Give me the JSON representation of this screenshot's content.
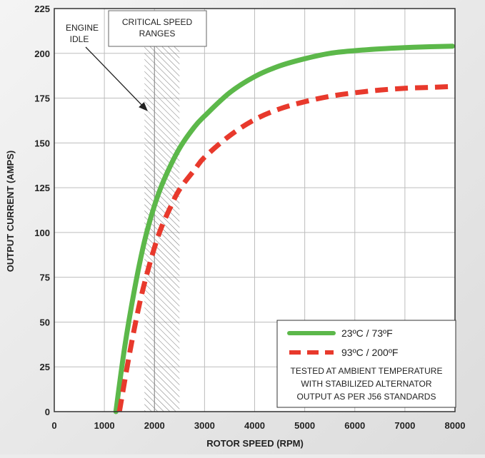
{
  "chart_data": {
    "type": "line",
    "xlabel": "ROTOR SPEED (RPM)",
    "ylabel": "OUTPUT CURRENT (AMPS)",
    "xlim": [
      0,
      8000
    ],
    "ylim": [
      0,
      225
    ],
    "x_ticks": [
      0,
      1000,
      2000,
      3000,
      4000,
      5000,
      6000,
      7000,
      8000
    ],
    "y_ticks": [
      0,
      25,
      50,
      75,
      100,
      125,
      150,
      175,
      200,
      225
    ],
    "grid": true,
    "legend_position": "bottom-right",
    "series": [
      {
        "name": "23ºC / 73ºF",
        "color": "#5cb84a",
        "style": "solid",
        "x": [
          1230,
          1400,
          1600,
          1800,
          2000,
          2200,
          2500,
          2800,
          3000,
          3500,
          4000,
          4500,
          5000,
          5500,
          6000,
          6500,
          7000,
          7500,
          7950
        ],
        "y": [
          0,
          35,
          68,
          95,
          115,
          130,
          147,
          159,
          165,
          178,
          187,
          193,
          197,
          200,
          201.5,
          202.5,
          203.2,
          203.7,
          204
        ]
      },
      {
        "name": "93ºC / 200ºF",
        "color": "#e8392c",
        "style": "dashed",
        "x": [
          1300,
          1500,
          1700,
          1900,
          2100,
          2300,
          2500,
          2800,
          3000,
          3500,
          4000,
          4500,
          5000,
          5500,
          6000,
          6500,
          7000,
          7500,
          7950
        ],
        "y": [
          0,
          32,
          60,
          82,
          100,
          113,
          124,
          135,
          142,
          154,
          163,
          169,
          173,
          176,
          178,
          179.5,
          180.5,
          181,
          181.5
        ]
      }
    ],
    "shaded_band": {
      "x_start": 1800,
      "x_end": 2500,
      "label": "CRITICAL SPEED RANGES"
    },
    "annotations": {
      "engine_idle": {
        "lines": [
          "ENGINE",
          "IDLE"
        ],
        "x": 2000
      },
      "critical_speed": {
        "lines": [
          "CRITICAL SPEED",
          "RANGES"
        ]
      },
      "legend_note": [
        "TESTED AT AMBIENT TEMPERATURE",
        "WITH  STABILIZED ALTERNATOR",
        "OUTPUT AS PER J56 STANDARDS"
      ]
    }
  }
}
